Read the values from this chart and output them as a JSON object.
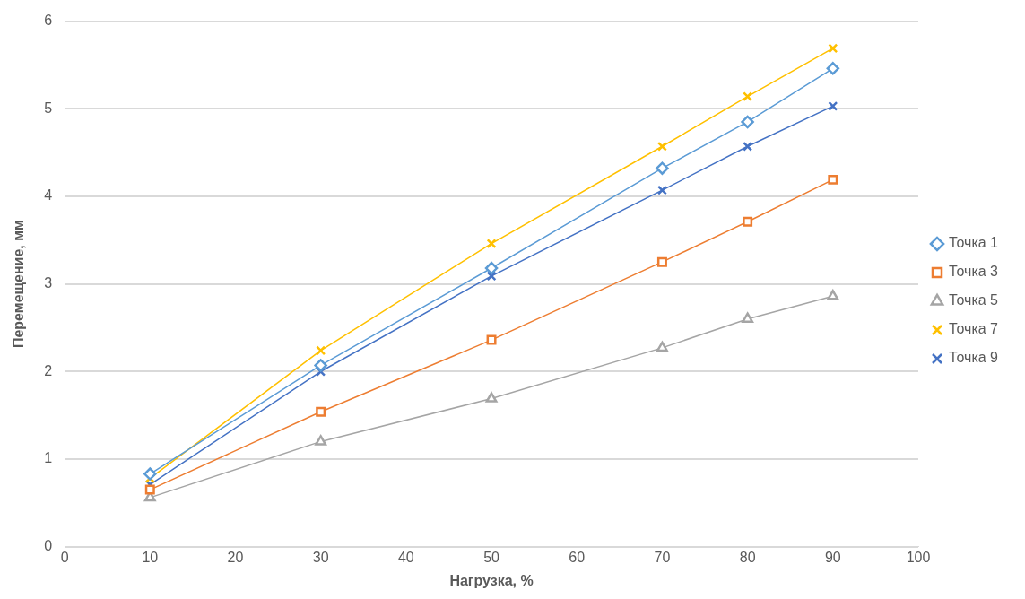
{
  "chart_data": {
    "type": "line",
    "xlabel": "Нагрузка, %",
    "ylabel": "Перемещение, мм",
    "x": [
      10,
      30,
      50,
      70,
      80,
      90
    ],
    "xlim": [
      0,
      100
    ],
    "xticks": [
      0,
      10,
      20,
      30,
      40,
      50,
      60,
      70,
      80,
      90,
      100
    ],
    "ylim": [
      0,
      6
    ],
    "yticks": [
      0,
      1,
      2,
      3,
      4,
      5,
      6
    ],
    "grid": "y",
    "legend": "right",
    "series": [
      {
        "name": "Точка 1",
        "color": "#5b9bd5",
        "marker": "diamond",
        "values": [
          0.83,
          2.07,
          3.18,
          4.32,
          4.85,
          5.46
        ]
      },
      {
        "name": "Точка 3",
        "color": "#ed7d31",
        "marker": "square",
        "values": [
          0.65,
          1.54,
          2.36,
          3.25,
          3.71,
          4.19
        ]
      },
      {
        "name": "Точка 5",
        "color": "#a5a5a5",
        "marker": "triangle",
        "values": [
          0.56,
          1.2,
          1.69,
          2.27,
          2.6,
          2.86
        ]
      },
      {
        "name": "Точка 7",
        "color": "#ffc000",
        "marker": "cross",
        "values": [
          0.78,
          2.24,
          3.46,
          4.57,
          5.14,
          5.69
        ]
      },
      {
        "name": "Точка 9",
        "color": "#4472c4",
        "marker": "cross",
        "values": [
          0.71,
          2.0,
          3.09,
          4.07,
          4.57,
          5.03
        ]
      }
    ]
  }
}
